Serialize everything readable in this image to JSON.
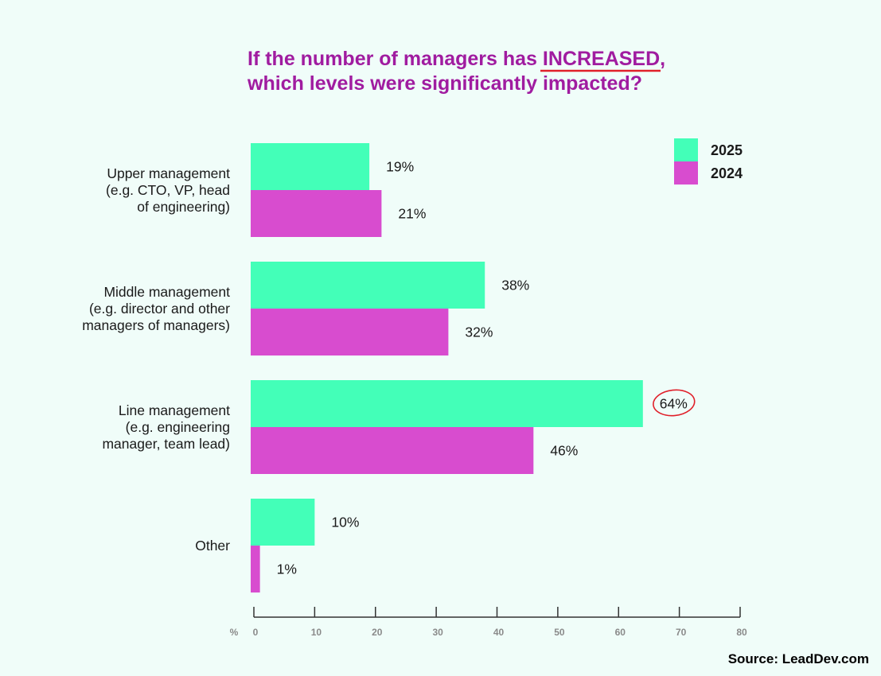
{
  "colors": {
    "title": "#a01ca0",
    "underline": "#e0202a",
    "series_2025": "#43ffb8",
    "series_2024": "#d84ccf",
    "axis": "#333333",
    "annotation_circle": "#e0202a"
  },
  "title_part1": "If the number of managers has ",
  "title_emphasis": "INCREASED",
  "title_part2": ",",
  "title_line2": "which levels were significantly impacted?",
  "source": "Source: LeadDev.com",
  "x_unit": "%",
  "chart_data": {
    "type": "bar",
    "orientation": "horizontal",
    "title": "If the number of managers has INCREASED, which levels were significantly impacted?",
    "categories": [
      [
        "Upper management",
        "(e.g. CTO, VP, head",
        "of engineering)"
      ],
      [
        "Middle management",
        "(e.g. director and other",
        "managers of managers)"
      ],
      [
        "Line management",
        "(e.g. engineering",
        "manager, team lead)"
      ],
      [
        "Other"
      ]
    ],
    "series": [
      {
        "name": "2025",
        "values": [
          19,
          38,
          64,
          10
        ],
        "labels": [
          "19%",
          "38%",
          "64%",
          "10%"
        ]
      },
      {
        "name": "2024",
        "values": [
          21,
          32,
          46,
          1
        ],
        "labels": [
          "21%",
          "32%",
          "46%",
          "1%"
        ]
      }
    ],
    "xlim": [
      0,
      80
    ],
    "xticks": [
      "0",
      "10",
      "20",
      "30",
      "40",
      "50",
      "60",
      "70",
      "80"
    ],
    "legend_position": "top-right",
    "grid": false,
    "highlighted_value": "64%"
  }
}
